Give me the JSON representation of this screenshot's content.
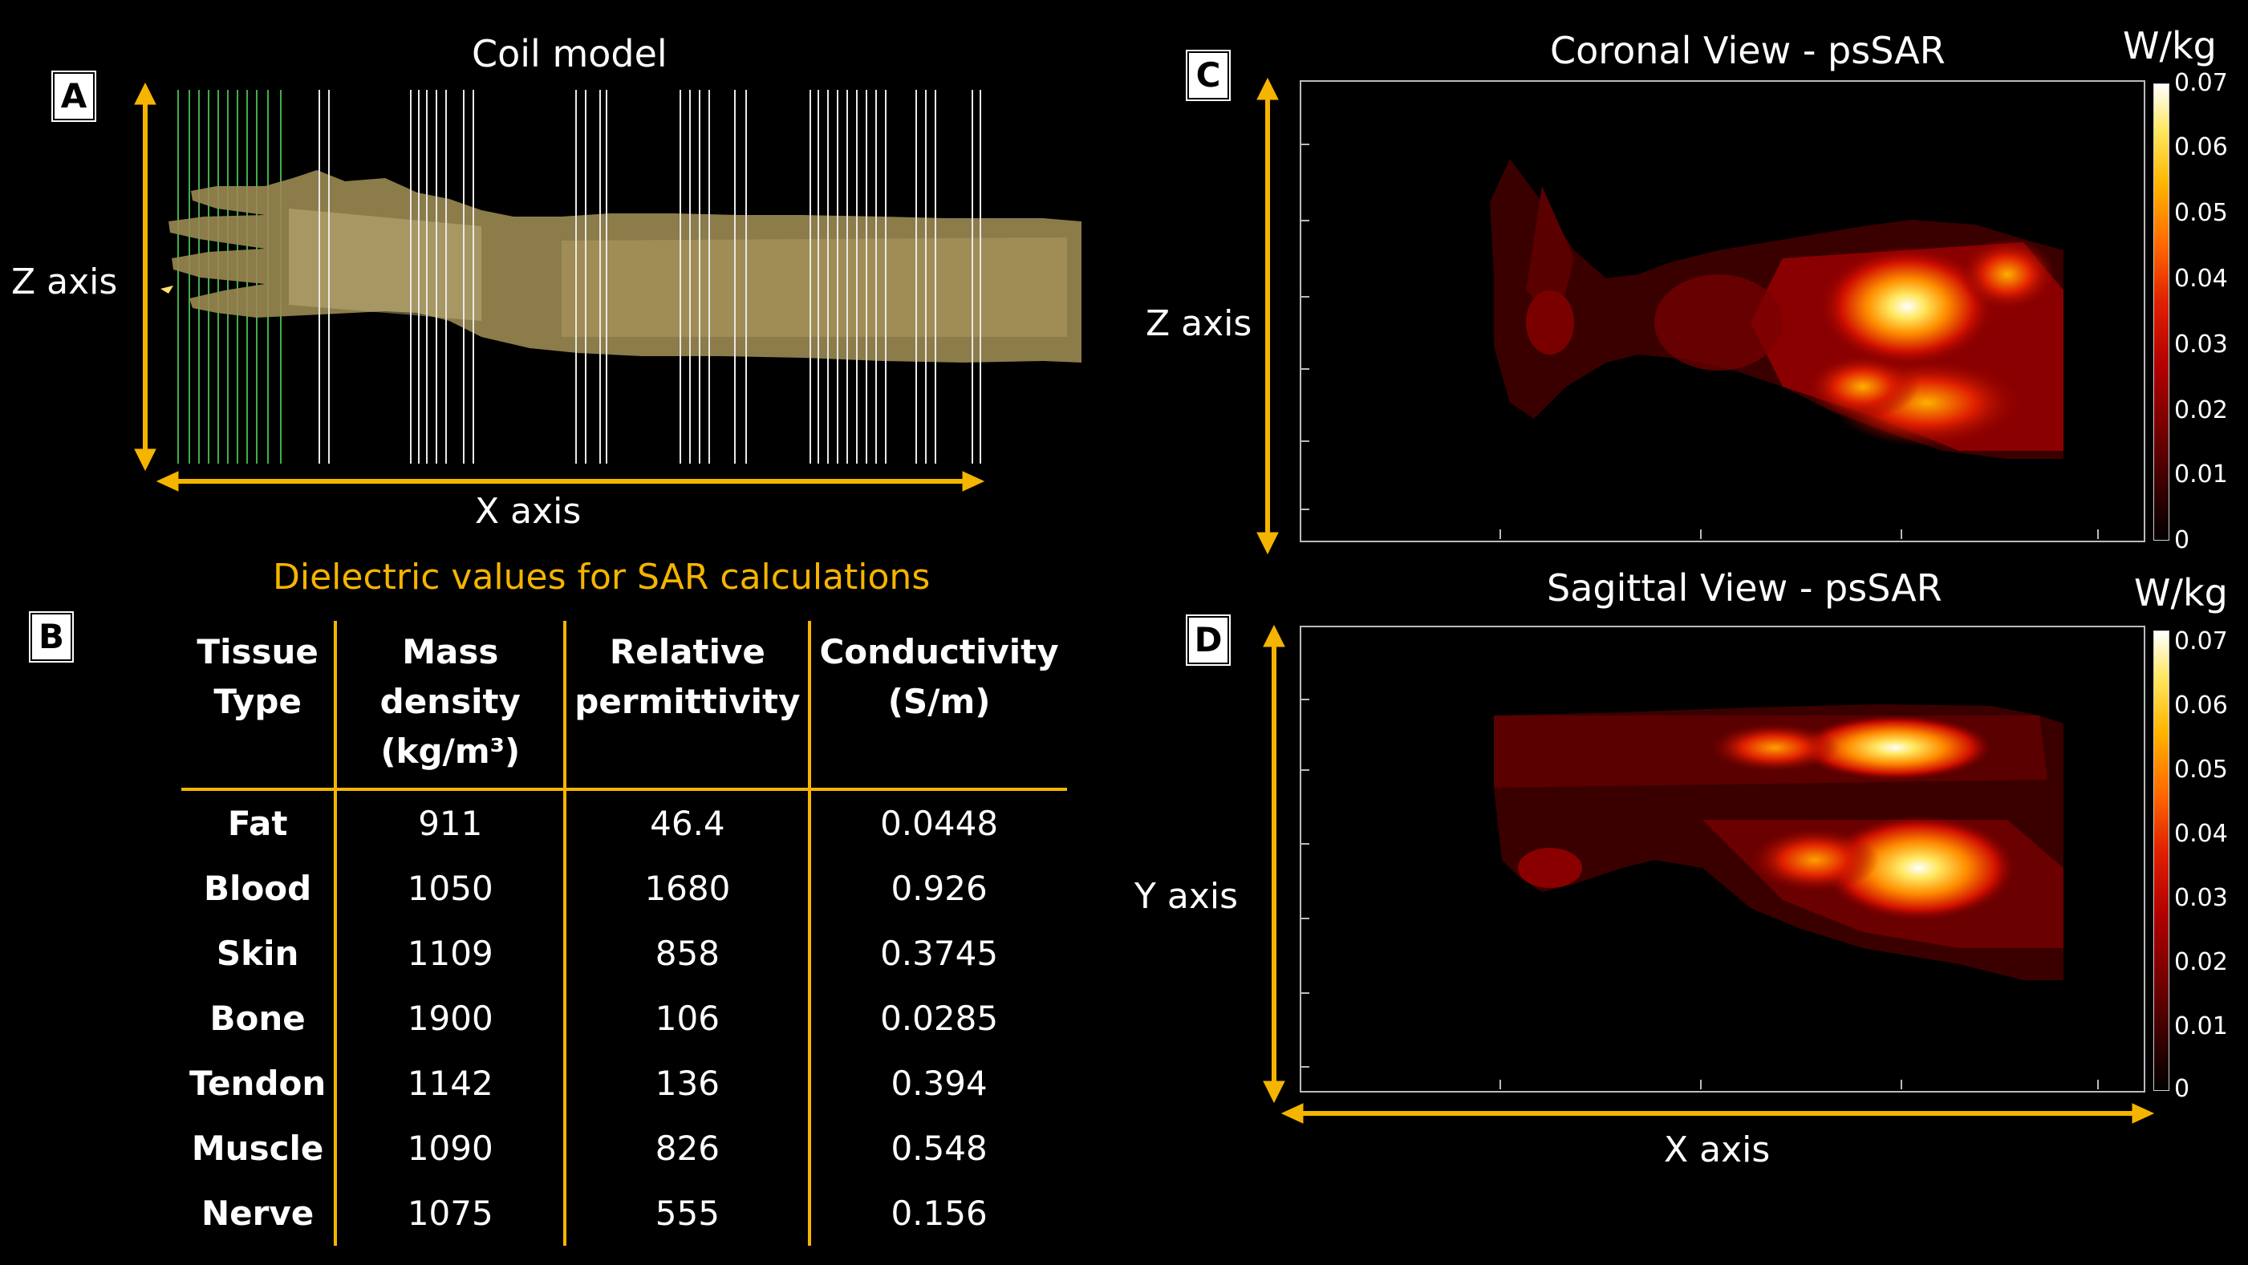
{
  "panels": {
    "a": "A",
    "b": "B",
    "c": "C",
    "d": "D"
  },
  "panel_a": {
    "title": "Coil model",
    "z_axis_label": "Z axis",
    "x_axis_label": "X axis"
  },
  "panel_b": {
    "title": "Dielectric values for SAR calculations",
    "headers": {
      "tissue": [
        "Tissue",
        "Type"
      ],
      "density": [
        "Mass",
        "density",
        "(kg/m³)"
      ],
      "permittivity": [
        "Relative",
        "permittivity"
      ],
      "conductivity": [
        "Conductivity",
        "(S/m)"
      ]
    },
    "rows": [
      {
        "tissue": "Fat",
        "density": "911",
        "permittivity": "46.4",
        "conductivity": "0.0448"
      },
      {
        "tissue": "Blood",
        "density": "1050",
        "permittivity": "1680",
        "conductivity": "0.926"
      },
      {
        "tissue": "Skin",
        "density": "1109",
        "permittivity": "858",
        "conductivity": "0.3745"
      },
      {
        "tissue": "Bone",
        "density": "1900",
        "permittivity": "106",
        "conductivity": "0.0285"
      },
      {
        "tissue": "Tendon",
        "density": "1142",
        "permittivity": "136",
        "conductivity": "0.394"
      },
      {
        "tissue": "Muscle",
        "density": "1090",
        "permittivity": "826",
        "conductivity": "0.548"
      },
      {
        "tissue": "Nerve",
        "density": "1075",
        "permittivity": "555",
        "conductivity": "0.156"
      }
    ]
  },
  "panel_c": {
    "title": "Coronal View - psSAR",
    "unit": "W/kg",
    "axis_label": "Z axis",
    "colorbar_ticks": [
      "0.07",
      "0.06",
      "0.05",
      "0.04",
      "0.03",
      "0.02",
      "0.01",
      "0"
    ]
  },
  "panel_d": {
    "title": "Sagittal View - psSAR",
    "unit": "W/kg",
    "y_axis_label": "Y axis",
    "x_axis_label": "X axis",
    "colorbar_ticks": [
      "0.07",
      "0.06",
      "0.05",
      "0.04",
      "0.03",
      "0.02",
      "0.01",
      "0"
    ]
  },
  "colors": {
    "accent": "#f5b400",
    "coil_green": "#3fae4a",
    "coil_white": "#e8e8e8"
  }
}
